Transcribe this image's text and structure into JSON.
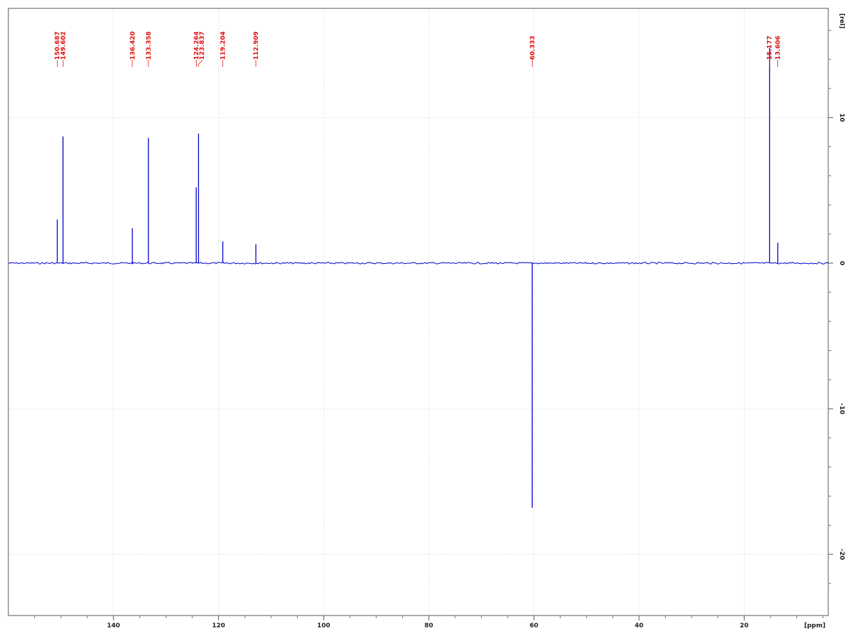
{
  "chart_data": {
    "type": "line",
    "title": "",
    "xlabel": "[ppm]",
    "ylabel": "[rel]",
    "x_reversed": true,
    "xlim": [
      4,
      160
    ],
    "ylim": [
      -24.2,
      17.5
    ],
    "xticks": [
      140,
      120,
      100,
      80,
      60,
      40,
      20
    ],
    "xtick_labels": [
      "140",
      "120",
      "100",
      "80",
      "60",
      "40",
      "20"
    ],
    "yticks": [
      10,
      0,
      -10,
      -20
    ],
    "ytick_labels": [
      "10",
      "0",
      "-10",
      "-20"
    ],
    "grid": true,
    "series": [
      {
        "peaks": [
          {
            "ppm": 150.687,
            "label": "150.687",
            "intensity": 3.0
          },
          {
            "ppm": 149.602,
            "label": "149.602",
            "intensity": 8.7
          },
          {
            "ppm": 136.42,
            "label": "136.420",
            "intensity": 2.4
          },
          {
            "ppm": 133.358,
            "label": "133.358",
            "intensity": 8.6
          },
          {
            "ppm": 124.264,
            "label": "124.264",
            "intensity": 5.2
          },
          {
            "ppm": 123.837,
            "label": "123.837",
            "intensity": 8.9
          },
          {
            "ppm": 119.204,
            "label": "119.204",
            "intensity": 1.5
          },
          {
            "ppm": 112.909,
            "label": "112.909",
            "intensity": 1.3
          },
          {
            "ppm": 60.333,
            "label": "60.333",
            "intensity": -16.8
          },
          {
            "ppm": 15.177,
            "label": "15.177",
            "intensity": 14.8
          },
          {
            "ppm": 13.606,
            "label": "13.606",
            "intensity": 1.4
          }
        ]
      }
    ]
  },
  "colors": {
    "spectrum": "#0000cc",
    "peak_labels": "#e01010",
    "grid": "#c8c8c8",
    "axes": "#555555"
  }
}
